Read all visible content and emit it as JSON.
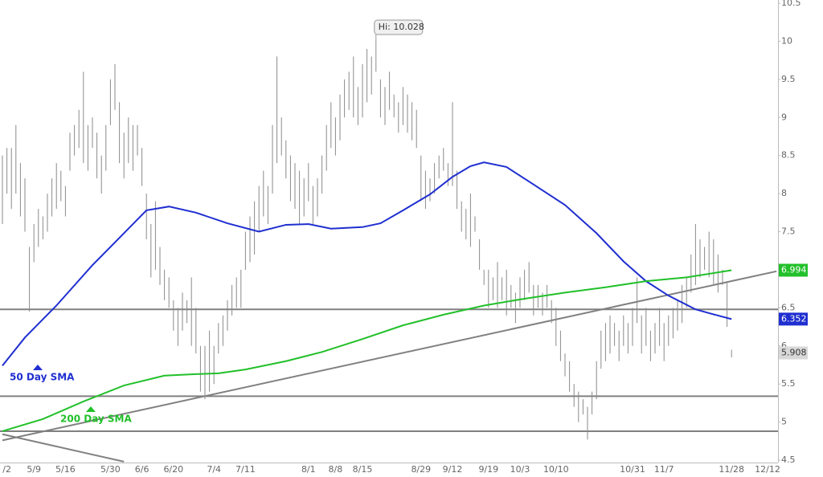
{
  "chart_data": {
    "type": "ohlc",
    "annotation": "Hi: 10.028",
    "ylim": [
      4.5,
      10.5
    ],
    "yticks": [
      4.5,
      5,
      5.5,
      6,
      6.5,
      7,
      7.5,
      8,
      8.5,
      9,
      9.5,
      10,
      10.5
    ],
    "bar_color": "#8a8a8a",
    "categories": [
      null,
      "/2",
      null,
      null,
      null,
      null,
      null,
      "5/9",
      null,
      null,
      null,
      null,
      null,
      null,
      "5/16",
      null,
      null,
      null,
      null,
      null,
      null,
      null,
      null,
      null,
      "5/30",
      null,
      null,
      null,
      null,
      null,
      null,
      "6/6",
      null,
      null,
      null,
      null,
      null,
      null,
      "6/20",
      null,
      null,
      null,
      null,
      null,
      null,
      null,
      null,
      "7/4",
      null,
      null,
      null,
      null,
      null,
      null,
      "7/11",
      null,
      null,
      null,
      null,
      null,
      null,
      null,
      null,
      null,
      null,
      null,
      null,
      null,
      "8/1",
      null,
      null,
      null,
      null,
      null,
      "8/8",
      null,
      null,
      null,
      null,
      null,
      "8/15",
      null,
      null,
      null,
      null,
      null,
      null,
      null,
      null,
      null,
      null,
      null,
      null,
      "8/29",
      null,
      null,
      null,
      null,
      null,
      null,
      "9/12",
      null,
      null,
      null,
      null,
      null,
      null,
      null,
      "9/19",
      null,
      null,
      null,
      null,
      null,
      null,
      "10/3",
      null,
      null,
      null,
      null,
      null,
      null,
      null,
      "10/10",
      null,
      null,
      null,
      null,
      null,
      null,
      null,
      null,
      null,
      null,
      null,
      null,
      null,
      null,
      null,
      null,
      "10/31",
      null,
      null,
      null,
      null,
      null,
      null,
      "11/7",
      null,
      null,
      null,
      null,
      null,
      null,
      null,
      null,
      null,
      null,
      null,
      null,
      null,
      null,
      "11/28",
      null,
      null,
      null,
      null,
      null,
      null,
      null,
      "12/12",
      null,
      null
    ],
    "high": [
      8.5,
      8.6,
      8.6,
      8.9,
      8.4,
      8.2,
      7.3,
      7.6,
      7.8,
      7.7,
      8.0,
      8.2,
      8.4,
      8.3,
      8.1,
      8.8,
      8.9,
      9.1,
      9.6,
      8.9,
      9.0,
      8.8,
      8.5,
      8.9,
      9.5,
      9.7,
      9.2,
      8.8,
      9.0,
      8.9,
      8.9,
      8.6,
      8.0,
      7.6,
      7.9,
      7.3,
      7.0,
      6.9,
      6.6,
      6.5,
      6.7,
      6.6,
      6.9,
      6.5,
      6.0,
      6.0,
      6.2,
      6.0,
      6.3,
      6.4,
      6.6,
      6.8,
      6.9,
      7.0,
      7.5,
      7.7,
      7.9,
      8.1,
      8.3,
      8.1,
      8.9,
      9.8,
      9.0,
      8.7,
      8.5,
      8.4,
      8.3,
      8.2,
      8.4,
      8.1,
      8.2,
      8.5,
      8.9,
      9.2,
      9.0,
      9.3,
      9.5,
      9.6,
      9.8,
      9.4,
      9.7,
      9.9,
      9.8,
      10.028,
      9.5,
      9.4,
      9.6,
      9.3,
      9.2,
      9.4,
      9.3,
      9.2,
      9.1,
      8.5,
      8.3,
      8.2,
      8.4,
      8.5,
      8.6,
      8.4,
      9.2,
      8.3,
      7.9,
      7.8,
      8.0,
      7.7,
      7.4,
      7.0,
      7.0,
      6.9,
      7.1,
      6.9,
      7.0,
      6.8,
      6.7,
      6.9,
      7.0,
      7.1,
      6.8,
      6.8,
      6.7,
      6.8,
      6.6,
      6.5,
      6.2,
      5.9,
      5.8,
      5.5,
      5.4,
      5.3,
      5.2,
      5.4,
      5.8,
      6.2,
      6.3,
      6.4,
      6.3,
      6.2,
      6.4,
      6.3,
      6.5,
      6.9,
      6.4,
      6.5,
      6.2,
      6.3,
      6.5,
      6.3,
      6.4,
      6.5,
      6.6,
      6.8,
      6.9,
      7.2,
      7.6,
      7.4,
      7.3,
      7.5,
      7.4,
      7.2,
      7.0,
      6.85,
      5.95,
      null,
      null,
      null,
      null,
      null,
      null,
      null,
      null,
      null,
      null
    ],
    "low": [
      7.6,
      8.0,
      7.8,
      8.0,
      7.7,
      7.5,
      6.45,
      7.1,
      7.3,
      7.4,
      7.5,
      7.7,
      7.8,
      7.9,
      7.7,
      8.3,
      8.5,
      8.6,
      8.4,
      8.3,
      8.6,
      8.2,
      8.0,
      8.3,
      8.9,
      9.1,
      8.4,
      8.2,
      8.4,
      8.3,
      8.5,
      8.1,
      7.4,
      6.9,
      7.0,
      6.8,
      6.6,
      6.5,
      6.2,
      6.0,
      6.2,
      6.3,
      6.0,
      5.9,
      5.4,
      5.3,
      5.4,
      5.5,
      5.9,
      6.0,
      6.2,
      6.4,
      6.5,
      6.5,
      7.0,
      7.1,
      7.2,
      7.5,
      7.7,
      7.6,
      8.0,
      8.4,
      8.5,
      8.2,
      7.9,
      7.8,
      7.6,
      7.7,
      7.9,
      7.6,
      7.7,
      8.0,
      8.3,
      8.6,
      8.5,
      8.7,
      9.0,
      9.1,
      9.0,
      8.9,
      9.0,
      9.2,
      9.3,
      9.6,
      9.0,
      8.9,
      9.1,
      9.0,
      8.8,
      8.9,
      8.8,
      8.7,
      8.6,
      7.9,
      7.8,
      7.9,
      8.0,
      8.2,
      8.3,
      8.1,
      8.1,
      7.8,
      7.5,
      7.4,
      7.3,
      7.5,
      7.0,
      6.8,
      6.5,
      6.6,
      6.5,
      6.6,
      6.4,
      6.5,
      6.3,
      6.5,
      6.6,
      6.7,
      6.4,
      6.5,
      6.4,
      6.5,
      6.3,
      6.0,
      5.8,
      5.6,
      5.4,
      5.2,
      5.0,
      5.1,
      4.77,
      5.1,
      5.3,
      5.7,
      5.8,
      5.9,
      6.0,
      5.8,
      6.0,
      5.9,
      6.0,
      6.3,
      5.9,
      6.0,
      5.8,
      5.9,
      6.0,
      5.8,
      6.0,
      6.1,
      6.2,
      6.3,
      6.5,
      6.7,
      6.8,
      6.9,
      7.0,
      6.9,
      6.8,
      6.7,
      6.8,
      6.25,
      5.85,
      null,
      null,
      null,
      null,
      null,
      null,
      null,
      null,
      null,
      null
    ],
    "last_price": 5.908,
    "series": [
      {
        "name": "50 Day SMA",
        "color": "#1f2fd0",
        "x": [
          0,
          5,
          12,
          20,
          27,
          32,
          37,
          43,
          50,
          57,
          63,
          68,
          73,
          80,
          84,
          89,
          95,
          100,
          104,
          107,
          112,
          118,
          125,
          132,
          138,
          143,
          148,
          154,
          157,
          162
        ],
        "values": [
          5.74,
          6.11,
          6.53,
          7.06,
          7.48,
          7.78,
          7.83,
          7.75,
          7.61,
          7.5,
          7.59,
          7.6,
          7.54,
          7.56,
          7.61,
          7.78,
          7.99,
          8.22,
          8.36,
          8.41,
          8.35,
          8.12,
          7.85,
          7.48,
          7.11,
          6.85,
          6.66,
          6.48,
          6.43,
          6.352
        ]
      },
      {
        "name": "200 Day SMA",
        "color": "#22c02a",
        "x": [
          0,
          9,
          18,
          27,
          36,
          43,
          48,
          54,
          63,
          71,
          80,
          89,
          98,
          107,
          116,
          125,
          134,
          143,
          152,
          162
        ],
        "values": [
          4.88,
          5.04,
          5.27,
          5.48,
          5.61,
          5.63,
          5.64,
          5.69,
          5.8,
          5.92,
          6.09,
          6.27,
          6.41,
          6.53,
          6.62,
          6.7,
          6.77,
          6.85,
          6.9,
          6.994
        ]
      }
    ],
    "horizontal_lines": [
      6.48,
      5.34,
      4.88
    ],
    "trend_lines": [
      {
        "x": [
          0,
          172
        ],
        "y": [
          4.76,
          6.98
        ]
      },
      {
        "x": [
          0,
          27
        ],
        "y": [
          4.84,
          4.48
        ]
      }
    ]
  }
}
